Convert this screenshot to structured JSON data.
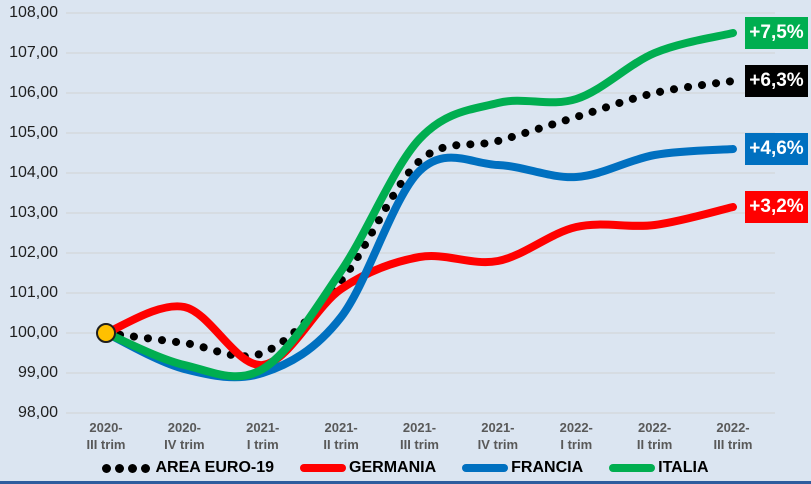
{
  "chart_data": {
    "type": "line",
    "title": "",
    "background": "#DBE5F1",
    "gridline_color": "#D2D2D2",
    "bottom_bar_color": "#2E5C9E",
    "y_axis": {
      "min": 98,
      "max": 108,
      "step": 1,
      "labels": [
        "108,00",
        "107,00",
        "106,00",
        "105,00",
        "104,00",
        "103,00",
        "102,00",
        "101,00",
        "100,00",
        "99,00",
        "98,00"
      ]
    },
    "x_axis": {
      "categories": [
        {
          "year": "2020-",
          "trim": "III trim"
        },
        {
          "year": "2020-",
          "trim": "IV trim"
        },
        {
          "year": "2021-",
          "trim": "I trim"
        },
        {
          "year": "2021-",
          "trim": "II trim"
        },
        {
          "year": "2021-",
          "trim": "III trim"
        },
        {
          "year": "2021-",
          "trim": "IV trim"
        },
        {
          "year": "2022-",
          "trim": "I trim"
        },
        {
          "year": "2022-",
          "trim": "II trim"
        },
        {
          "year": "2022-",
          "trim": "III trim"
        }
      ]
    },
    "series": [
      {
        "name": "AREA EURO-19",
        "color": "#000000",
        "style": "dotted",
        "badge": "+6,3%",
        "values": [
          100.0,
          99.75,
          99.5,
          101.3,
          104.3,
          104.8,
          105.4,
          106.0,
          106.3
        ]
      },
      {
        "name": "GERMANIA",
        "color": "#FF0000",
        "style": "solid",
        "badge": "+3,2%",
        "values": [
          100.0,
          100.65,
          99.2,
          101.1,
          101.9,
          101.8,
          102.65,
          102.7,
          103.15
        ]
      },
      {
        "name": "FRANCIA",
        "color": "#0070C0",
        "style": "solid",
        "badge": "+4,6%",
        "values": [
          100.0,
          99.1,
          99.0,
          100.4,
          104.05,
          104.2,
          103.9,
          104.45,
          104.6
        ]
      },
      {
        "name": "ITALIA",
        "color": "#00AE50",
        "style": "solid",
        "badge": "+7,5%",
        "values": [
          100.0,
          99.2,
          99.1,
          101.55,
          104.85,
          105.75,
          105.85,
          107.0,
          107.5
        ]
      }
    ],
    "start_marker": {
      "point_index": 0,
      "value": 100.0,
      "fill": "#FFC000",
      "stroke": "#1F1F1F"
    },
    "layout": {
      "legend_position": "bottom",
      "grid": true,
      "badge_side": "right"
    }
  }
}
